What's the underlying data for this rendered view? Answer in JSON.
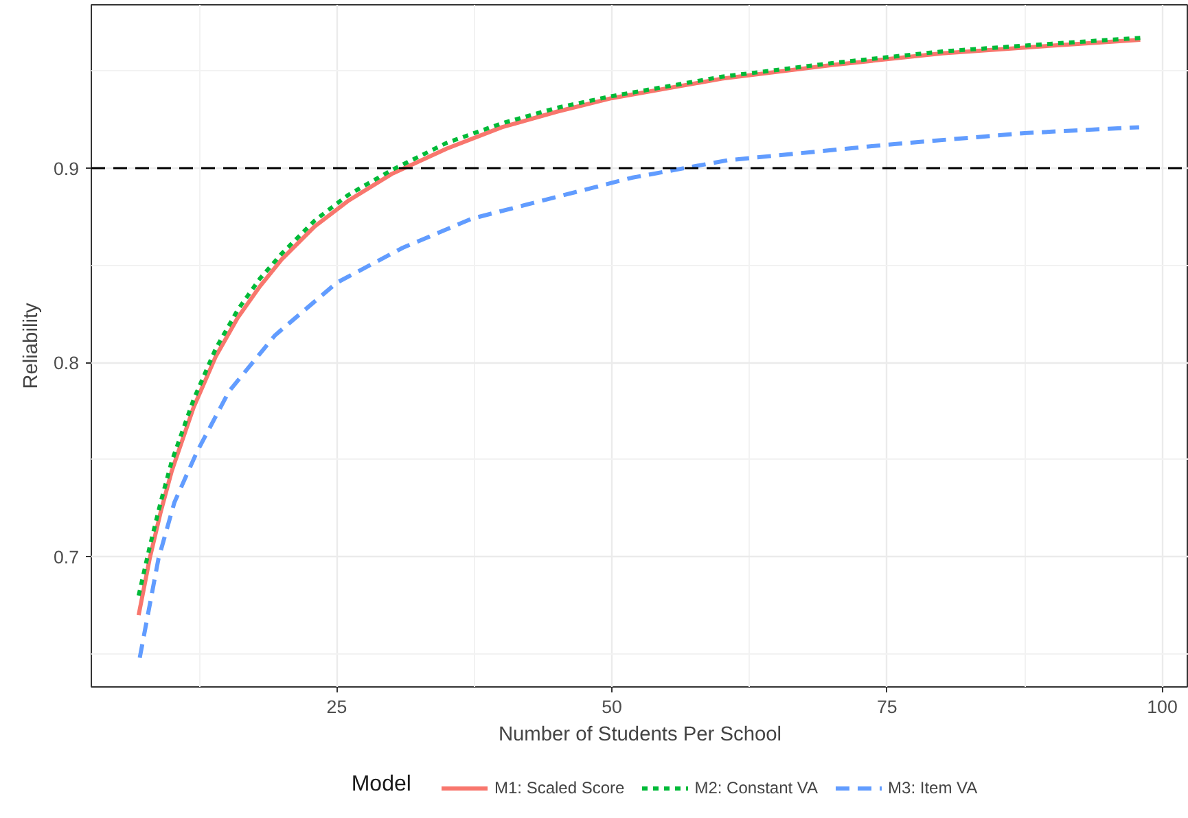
{
  "chart_data": {
    "type": "line",
    "xlabel": "Number of Students Per School",
    "ylabel": "Reliability",
    "legend_title": "Model",
    "x": [
      7,
      8,
      9,
      10,
      12,
      14,
      16,
      18,
      20,
      23,
      26,
      30,
      35,
      40,
      45,
      50,
      60,
      70,
      80,
      90,
      98
    ],
    "series": [
      {
        "name": "M1: Scaled Score",
        "color": "#f8766d",
        "line_style": "solid",
        "values": [
          0.67,
          0.699,
          0.723,
          0.744,
          0.777,
          0.803,
          0.823,
          0.839,
          0.853,
          0.87,
          0.883,
          0.897,
          0.91,
          0.921,
          0.929,
          0.936,
          0.946,
          0.953,
          0.959,
          0.963,
          0.966
        ]
      },
      {
        "name": "M2: Constant VA",
        "color": "#00ba38",
        "line_style": "dotted",
        "values": [
          0.68,
          0.705,
          0.728,
          0.749,
          0.781,
          0.807,
          0.827,
          0.843,
          0.856,
          0.873,
          0.886,
          0.899,
          0.913,
          0.923,
          0.931,
          0.937,
          0.947,
          0.954,
          0.96,
          0.964,
          0.967
        ]
      },
      {
        "name": "M3: Item VA",
        "color": "#619cff",
        "line_style": "dashed",
        "x": [
          7.1,
          8.8,
          10.25,
          12.3,
          15.2,
          19.4,
          25,
          31,
          37.3,
          43.5,
          51.8,
          60.5,
          75,
          87.5,
          97.9
        ],
        "values": [
          0.648,
          0.699,
          0.728,
          0.754,
          0.785,
          0.814,
          0.841,
          0.859,
          0.874,
          0.883,
          0.895,
          0.904,
          0.912,
          0.918,
          0.921
        ]
      }
    ],
    "xlim": [
      2.7,
      102.4
    ],
    "ylim": [
      0.633,
      0.984
    ],
    "xticks": [
      25,
      50,
      75,
      100
    ],
    "yticks": [
      0.7,
      0.8,
      0.9
    ],
    "ref_lines": [
      {
        "axis": "y",
        "value": 0.9,
        "label": null,
        "color": "#000000",
        "line_style": "dashed"
      }
    ],
    "grid": true,
    "legend": "bottom",
    "marker": "none"
  }
}
